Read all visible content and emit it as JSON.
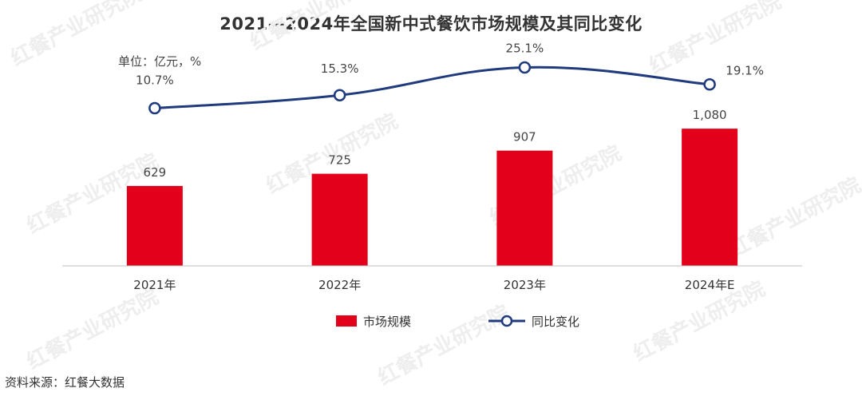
{
  "title": "2021—2024年全国新中式餐饮市场规模及其同比变化",
  "unit_label": "单位：亿元，%",
  "source": "资料来源：红餐大数据",
  "watermark": "红餐产业研究院",
  "colors": {
    "bar": "#e2001a",
    "line": "#1f3a7d",
    "axis": "#bfbfbf",
    "watermark": "#eeeeee"
  },
  "chart_data": {
    "type": "bar",
    "categories": [
      "2021年",
      "2022年",
      "2023年",
      "2024年E"
    ],
    "series": [
      {
        "name": "市场规模",
        "type": "bar",
        "values": [
          629,
          725,
          907,
          1080
        ],
        "labels": [
          "629",
          "725",
          "907",
          "1,080"
        ]
      },
      {
        "name": "同比变化",
        "type": "line",
        "values": [
          10.7,
          15.3,
          25.1,
          19.1
        ],
        "labels": [
          "10.7%",
          "15.3%",
          "25.1%",
          "19.1%"
        ]
      }
    ],
    "ylim_bar": [
      0,
      1150
    ],
    "ylim_line": [
      -45,
      32
    ],
    "grid": false,
    "legend_position": "bottom"
  }
}
